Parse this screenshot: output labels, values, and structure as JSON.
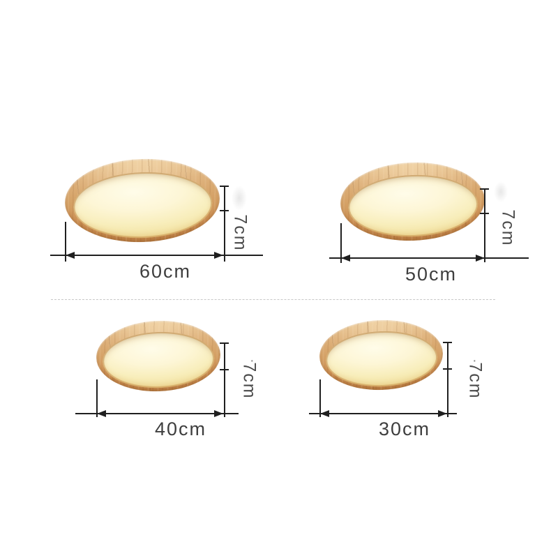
{
  "lamps": [
    {
      "diameter_label": "60cm",
      "height_label": "7cm",
      "diameter_cm": 60,
      "height_cm": 7
    },
    {
      "diameter_label": "50cm",
      "height_label": "7cm",
      "diameter_cm": 50,
      "height_cm": 7
    },
    {
      "diameter_label": "40cm",
      "height_label": "7cm",
      "diameter_cm": 40,
      "height_cm": 7
    },
    {
      "diameter_label": "30cm",
      "height_label": "7cm",
      "diameter_cm": 30,
      "height_cm": 7
    }
  ],
  "marks": {
    "stray_dot": "·"
  },
  "colors": {
    "background": "#ffffff",
    "wood_light": "#eac896",
    "wood_mid": "#d5a267",
    "wood_dark": "#bc7f44",
    "glow_center": "#fffce9",
    "glow_edge": "#efdd97",
    "dimension_line": "#1f1f1f",
    "label_text": "#3e3e3e",
    "divider": "#c7c7c7"
  }
}
